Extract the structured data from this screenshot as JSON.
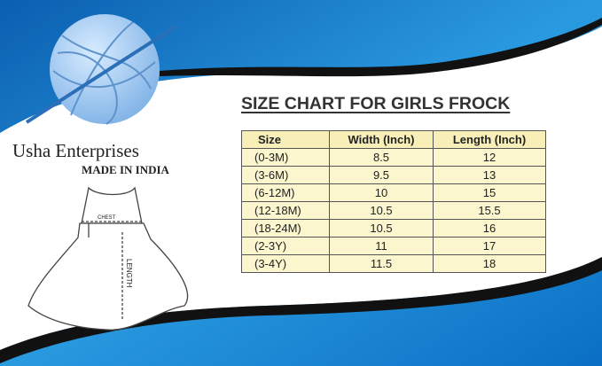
{
  "brand": "Usha Enterprises",
  "made_in": "MADE IN INDIA",
  "title": "SIZE CHART FOR GIRLS FROCK",
  "table": {
    "header": [
      "Size",
      "Width (Inch)",
      "Length (Inch)"
    ],
    "rows": [
      [
        "(0-3M)",
        "8.5",
        "12"
      ],
      [
        "(3-6M)",
        "9.5",
        "13"
      ],
      [
        "(6-12M)",
        "10",
        "15"
      ],
      [
        "(12-18M)",
        "10.5",
        "15.5"
      ],
      [
        "(18-24M)",
        "10.5",
        "16"
      ],
      [
        "(2-3Y)",
        "11",
        "17"
      ],
      [
        "(3-4Y)",
        "11.5",
        "18"
      ]
    ]
  },
  "diagram": {
    "chest_label": "CHEST",
    "length_label": "LENGTH"
  }
}
